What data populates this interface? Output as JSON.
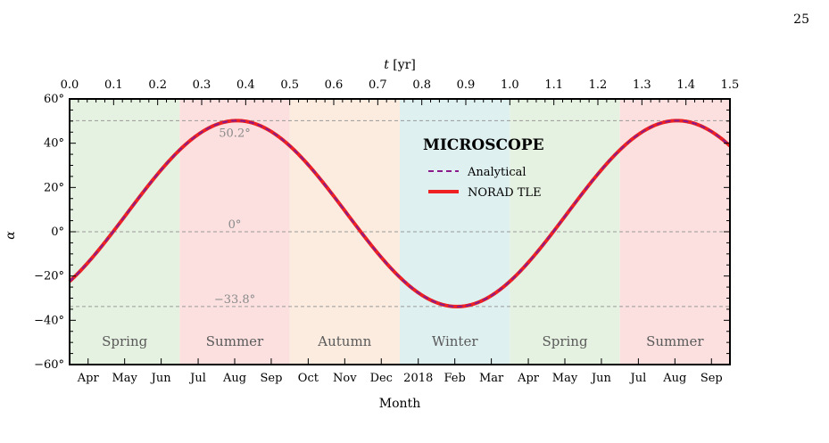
{
  "page_number": "25",
  "chart_data": {
    "type": "line",
    "x_top": {
      "label_var": "t",
      "label_unit": "[yr]",
      "range": [
        0.0,
        1.5
      ],
      "ticks": [
        "0.0",
        "0.1",
        "0.2",
        "0.3",
        "0.4",
        "0.5",
        "0.6",
        "0.7",
        "0.8",
        "0.9",
        "1.0",
        "1.1",
        "1.2",
        "1.3",
        "1.4",
        "1.5"
      ]
    },
    "x_bottom": {
      "label": "Month",
      "ticks": [
        {
          "t": 0.042,
          "label": "Apr"
        },
        {
          "t": 0.125,
          "label": "May"
        },
        {
          "t": 0.208,
          "label": "Jun"
        },
        {
          "t": 0.292,
          "label": "Jul"
        },
        {
          "t": 0.375,
          "label": "Aug"
        },
        {
          "t": 0.458,
          "label": "Sep"
        },
        {
          "t": 0.542,
          "label": "Oct"
        },
        {
          "t": 0.625,
          "label": "Nov"
        },
        {
          "t": 0.708,
          "label": "Dec"
        },
        {
          "t": 0.792,
          "label": "2018"
        },
        {
          "t": 0.875,
          "label": "Feb"
        },
        {
          "t": 0.958,
          "label": "Mar"
        },
        {
          "t": 1.042,
          "label": "Apr"
        },
        {
          "t": 1.125,
          "label": "May"
        },
        {
          "t": 1.208,
          "label": "Jun"
        },
        {
          "t": 1.292,
          "label": "Jul"
        },
        {
          "t": 1.375,
          "label": "Aug"
        },
        {
          "t": 1.458,
          "label": "Sep"
        }
      ]
    },
    "y": {
      "label": "α",
      "range": [
        -60,
        60
      ],
      "ticks": [
        "−60°",
        "−40°",
        "−20°",
        "0°",
        "20°",
        "40°",
        "60°"
      ]
    },
    "seasons": [
      {
        "label": "Spring",
        "t_start": 0.0,
        "t_end": 0.25,
        "color": "#e6f2e1"
      },
      {
        "label": "Summer",
        "t_start": 0.25,
        "t_end": 0.5,
        "color": "#fbe0df"
      },
      {
        "label": "Autumn",
        "t_start": 0.5,
        "t_end": 0.75,
        "color": "#fbecdf"
      },
      {
        "label": "Winter",
        "t_start": 0.75,
        "t_end": 1.0,
        "color": "#dff0f1"
      },
      {
        "label": "Spring",
        "t_start": 1.0,
        "t_end": 1.25,
        "color": "#e6f2e1"
      },
      {
        "label": "Summer",
        "t_start": 1.25,
        "t_end": 1.5,
        "color": "#fbe0df"
      }
    ],
    "reference_lines": [
      {
        "y": 50.2,
        "label": "50.2°"
      },
      {
        "y": 0,
        "label": "0°"
      },
      {
        "y": -33.8,
        "label": "−33.8°"
      }
    ],
    "curve_model": {
      "offset": 8.2,
      "amplitude": 42.0,
      "period": 1.0,
      "t_peak": 0.38
    },
    "series": [
      {
        "name": "Analytical",
        "color": "#8b1a8b",
        "style": "dashed"
      },
      {
        "name": "NORAD TLE",
        "color": "#ee2222",
        "style": "solid"
      }
    ],
    "legend": {
      "title": "MICROSCOPE",
      "position": "upper-center-right"
    }
  }
}
